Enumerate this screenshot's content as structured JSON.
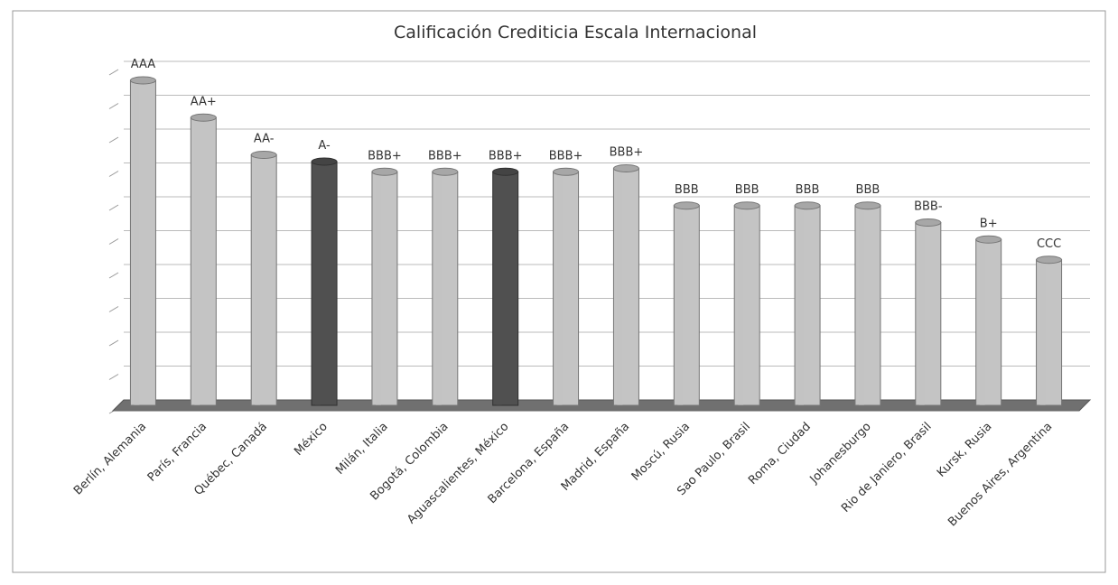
{
  "chart_data": {
    "type": "bar3d",
    "title": "Calificación Crediticia Escala Internacional",
    "categories": [
      "Berlín, Alemania",
      "París, Francia",
      "Québec, Canadá",
      "México",
      "Milán, Italia",
      "Bogotá, Colombia",
      "Aguascalientes, México",
      "Barcelona, España",
      "Madrid, España",
      "Moscú, Rusia",
      "Sao Paulo, Brasil",
      "Roma, Ciudad",
      "Johanesburgo",
      "Rio de Janiero, Brasil",
      "Kursk, Rusia",
      "Buenos Aires, Argentina"
    ],
    "values": [
      9.6,
      8.5,
      7.4,
      7.2,
      6.9,
      6.9,
      6.9,
      6.9,
      7.0,
      5.9,
      5.9,
      5.9,
      5.9,
      5.4,
      4.9,
      4.3
    ],
    "value_labels": [
      "AAA",
      "AA+",
      "AA-",
      "A-",
      "BBB+",
      "BBB+",
      "BBB+",
      "BBB+",
      "BBB+",
      "BBB",
      "BBB",
      "BBB",
      "BBB",
      "BBB-",
      "B+",
      "CCC"
    ],
    "colors": [
      "#c4c4c4",
      "#c4c4c4",
      "#c4c4c4",
      "#505050",
      "#c4c4c4",
      "#c4c4c4",
      "#505050",
      "#c4c4c4",
      "#c4c4c4",
      "#c4c4c4",
      "#c4c4c4",
      "#c4c4c4",
      "#c4c4c4",
      "#c4c4c4",
      "#c4c4c4",
      "#c4c4c4"
    ],
    "ylim": [
      0,
      10
    ],
    "yticks": [
      0,
      1,
      2,
      3,
      4,
      5,
      6,
      7,
      8,
      9,
      10
    ],
    "grid": true
  }
}
